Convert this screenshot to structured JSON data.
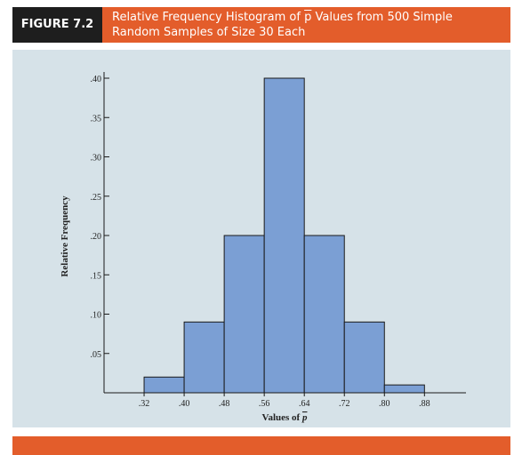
{
  "figure": {
    "label": "FIGURE 7.2",
    "title_pre": "Relative Frequency Histogram of ",
    "title_var": "p",
    "title_post": " Values from 500 Simple",
    "title_line2": "Random Samples of Size 30 Each"
  },
  "colors": {
    "header_bg": "#e35d2b",
    "label_bg": "#1e1e1e",
    "panel_bg": "#d6e2e8",
    "bar_fill": "#7b9fd4",
    "bar_stroke": "#1a1a1a"
  },
  "chart_data": {
    "type": "bar",
    "title": "Relative Frequency Histogram of p̄ Values from 500 Simple Random Samples of Size 30 Each",
    "xlabel": "Values of p̄",
    "ylabel": "Relative Frequency",
    "bins": [
      {
        "from": 0.32,
        "to": 0.4,
        "value": 0.02
      },
      {
        "from": 0.4,
        "to": 0.48,
        "value": 0.09
      },
      {
        "from": 0.48,
        "to": 0.56,
        "value": 0.2
      },
      {
        "from": 0.56,
        "to": 0.64,
        "value": 0.4
      },
      {
        "from": 0.64,
        "to": 0.72,
        "value": 0.2
      },
      {
        "from": 0.72,
        "to": 0.8,
        "value": 0.09
      },
      {
        "from": 0.8,
        "to": 0.88,
        "value": 0.01
      }
    ],
    "x_ticks": [
      0.32,
      0.4,
      0.48,
      0.56,
      0.64,
      0.72,
      0.8,
      0.88
    ],
    "x_tick_labels": [
      ".32",
      ".40",
      ".48",
      ".56",
      ".64",
      ".72",
      ".80",
      ".88"
    ],
    "y_ticks": [
      0.05,
      0.1,
      0.15,
      0.2,
      0.25,
      0.3,
      0.35,
      0.4
    ],
    "y_tick_labels": [
      ".05",
      ".10",
      ".15",
      ".20",
      ".25",
      ".30",
      ".35",
      ".40"
    ],
    "xlim": [
      0.24,
      0.96
    ],
    "ylim": [
      0,
      0.4
    ],
    "grid": false
  }
}
